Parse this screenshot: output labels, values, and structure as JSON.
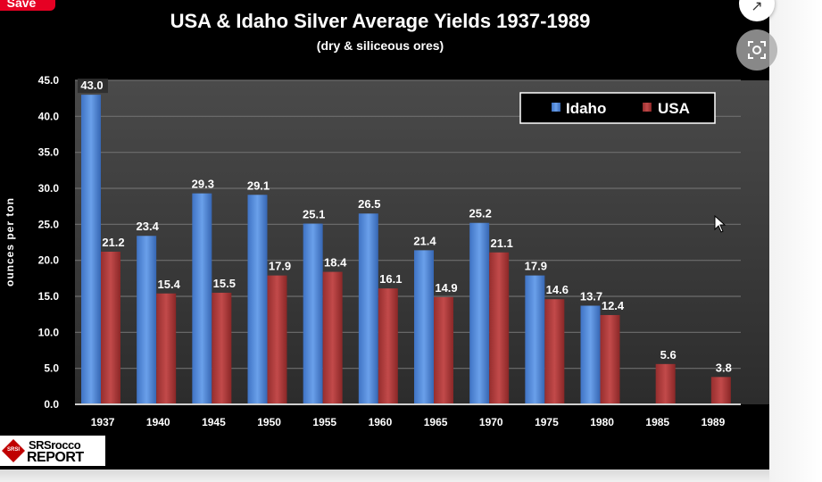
{
  "overlay": {
    "save_label": "Save",
    "expand_icon": "expand-arrows-icon",
    "lens_icon": "visual-search-lens-icon"
  },
  "logo": {
    "line1": "SRSrocco",
    "line2": "REPORT",
    "badge": "SRSI"
  },
  "chart_data": {
    "type": "bar",
    "title": "USA & Idaho Silver Average Yields 1937-1989",
    "subtitle": "(dry & siliceous ores)",
    "ylabel": "ounces per ton",
    "xlabel": "",
    "ylim": [
      0,
      45
    ],
    "yticks": [
      "0.0",
      "5.0",
      "10.0",
      "15.0",
      "20.0",
      "25.0",
      "30.0",
      "35.0",
      "40.0",
      "45.0"
    ],
    "categories": [
      "1937",
      "1940",
      "1945",
      "1950",
      "1955",
      "1960",
      "1965",
      "1970",
      "1975",
      "1980",
      "1985",
      "1989"
    ],
    "series": [
      {
        "name": "Idaho",
        "color": "#4f86d6",
        "values": [
          43.0,
          23.4,
          29.3,
          29.1,
          25.1,
          26.5,
          21.4,
          25.2,
          17.9,
          13.7,
          null,
          null
        ],
        "labels": [
          "43.0",
          "23.4",
          "29.3",
          "29.1",
          "25.1",
          "26.5",
          "21.4",
          "25.2",
          "17.9",
          "13.7",
          "",
          ""
        ]
      },
      {
        "name": "USA",
        "color": "#b03a3a",
        "values": [
          21.2,
          15.4,
          15.5,
          17.9,
          18.4,
          16.1,
          14.9,
          21.1,
          14.6,
          12.4,
          5.6,
          3.8
        ],
        "labels": [
          "21.2",
          "15.4",
          "15.5",
          "17.9",
          "18.4",
          "16.1",
          "14.9",
          "21.1",
          "14.6",
          "12.4",
          "5.6",
          "3.8"
        ]
      }
    ],
    "grid": true,
    "legend_position": "top-right",
    "colors": {
      "background": "#000000",
      "plot_area": "#3a3a3a",
      "text": "#ffffff",
      "legend_bg": "#000000"
    }
  }
}
